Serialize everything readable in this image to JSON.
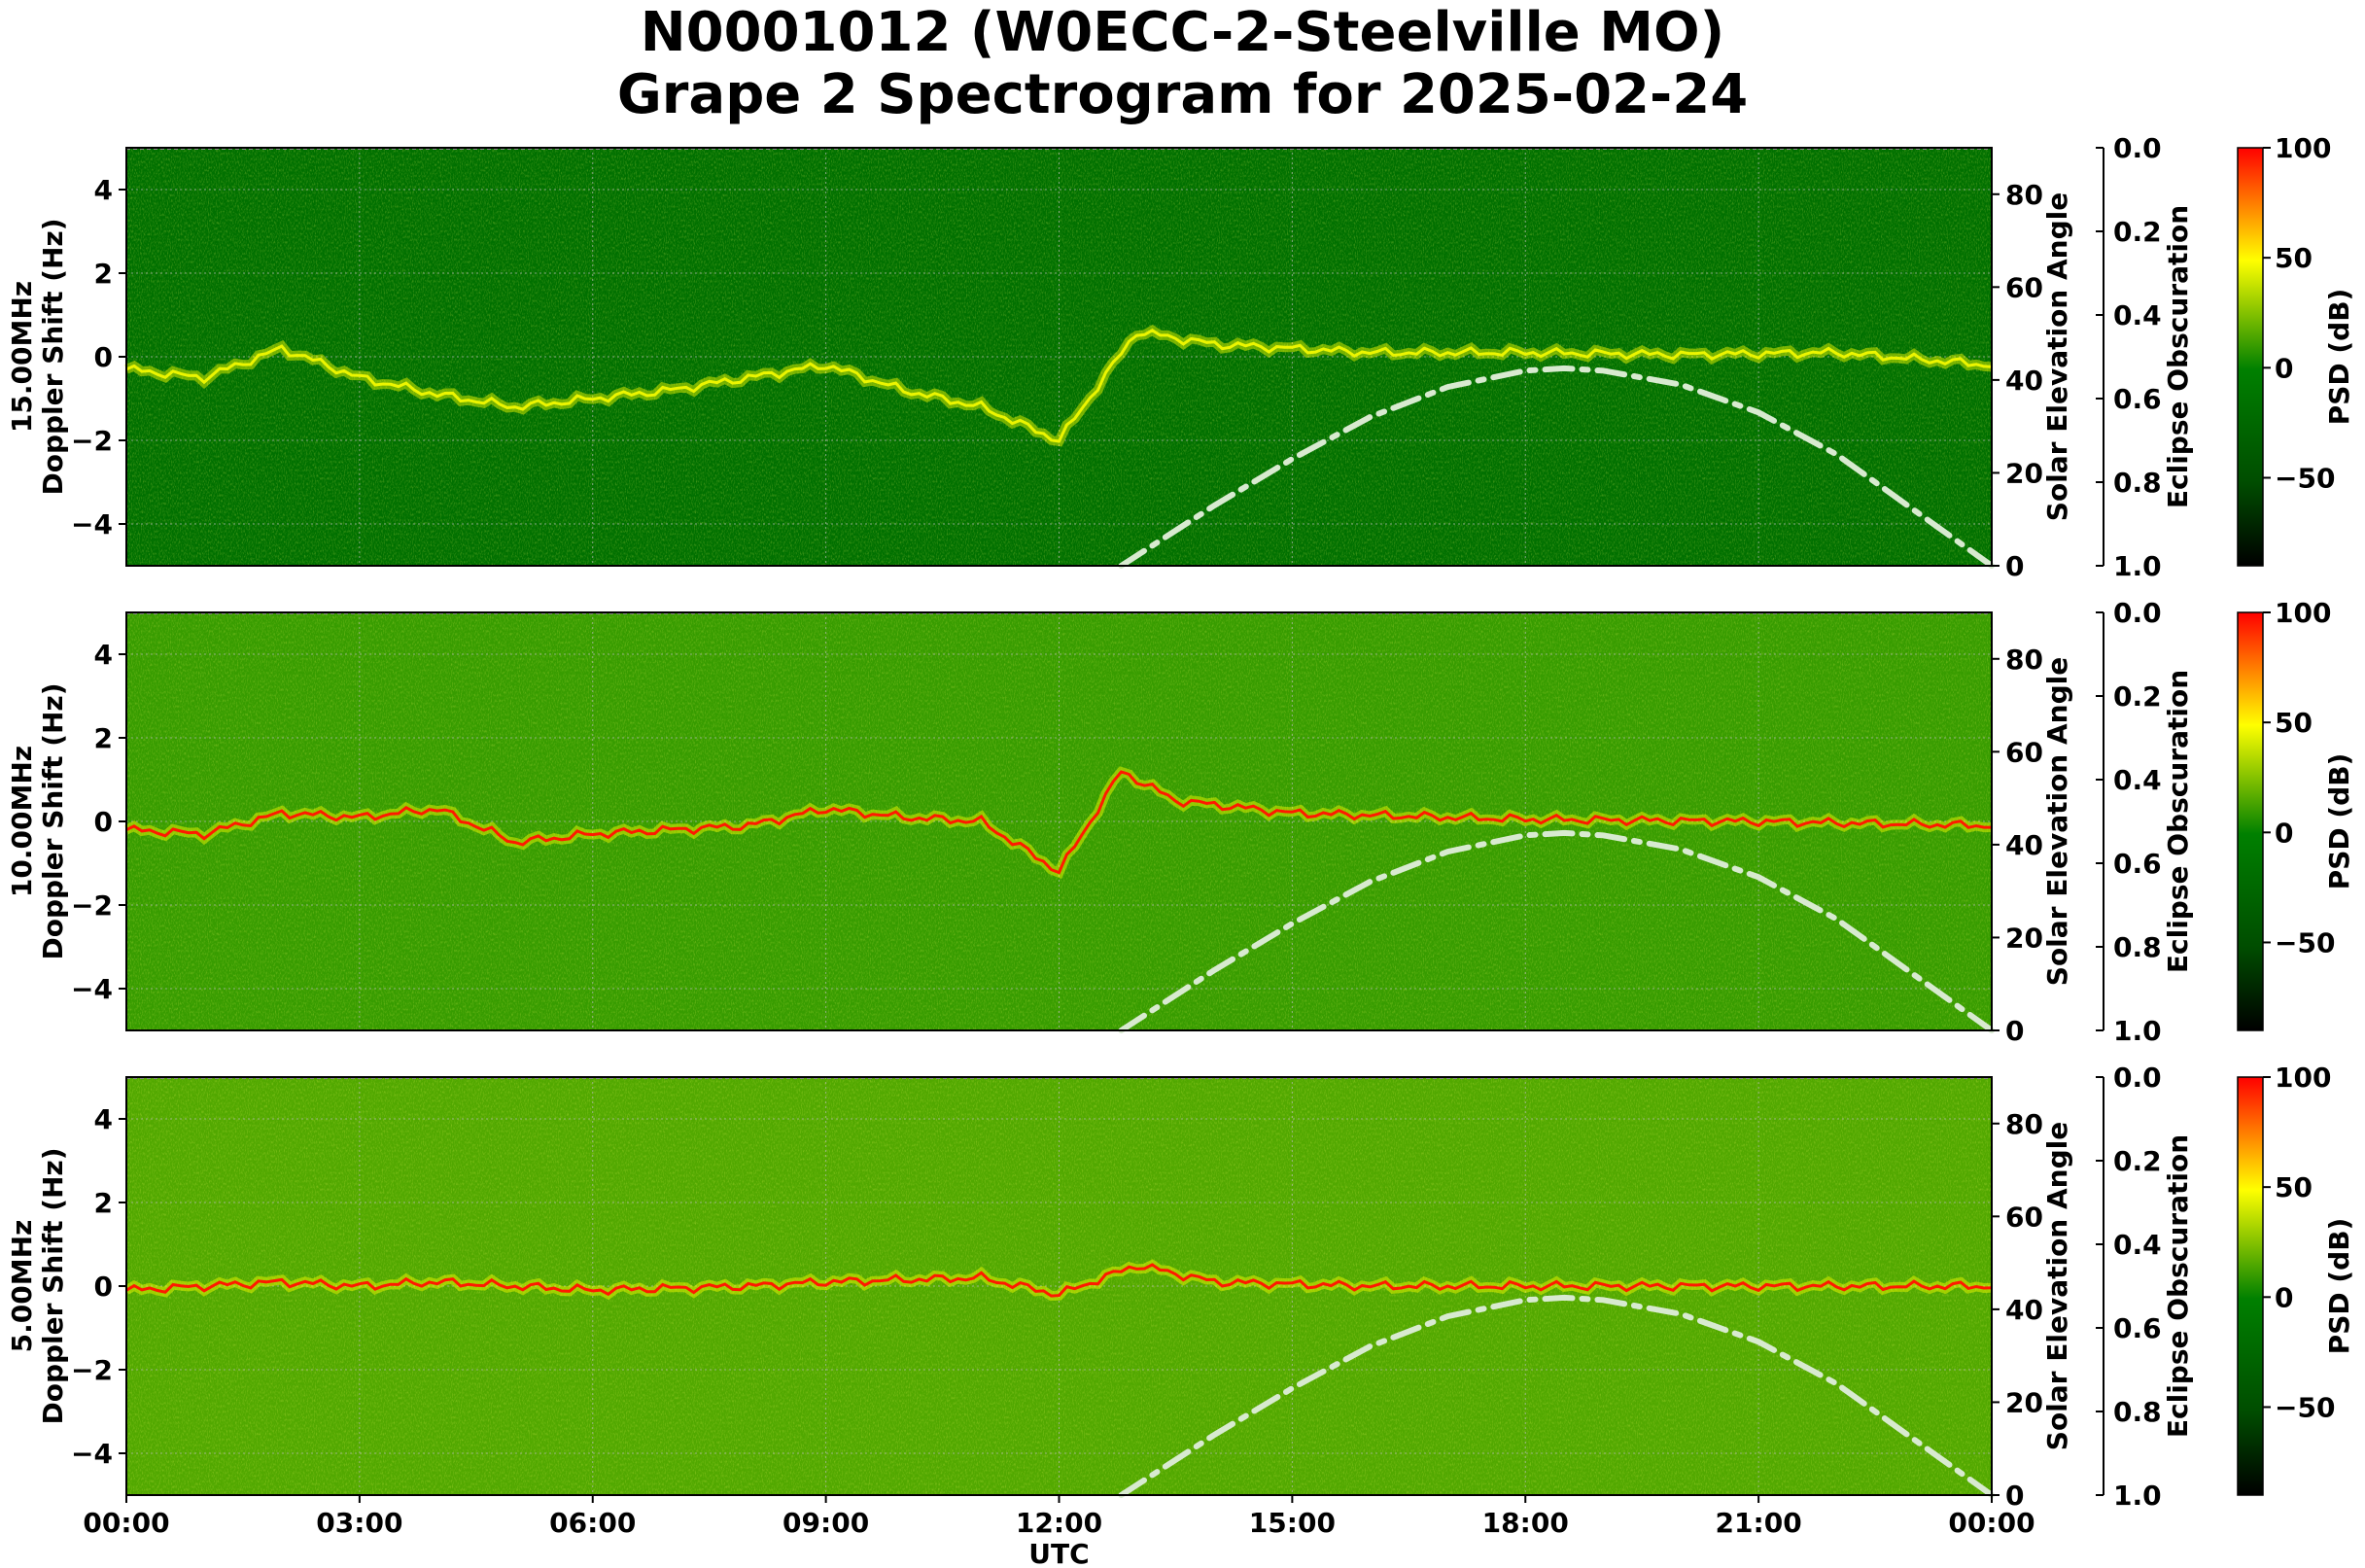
{
  "title": {
    "line1": "N0001012 (W0ECC-2-Steelville MO)",
    "line2": "Grape 2 Spectrogram for 2025-02-24"
  },
  "colors": {
    "cmap": [
      "#000000",
      "#006400",
      "#008000",
      "#ffff00",
      "#ff0000"
    ],
    "solar_curve": "#d8ead0",
    "grid": "#bbbbbb"
  },
  "chart_data": [
    {
      "type": "heatmap",
      "panel": "15.00MHz",
      "ylabel_line1": "15.00MHz",
      "ylabel_line2": "Doppler Shift (Hz)",
      "ylabel_right": "Solar Elevation Angle",
      "ylabel_eclipse": "Eclipse Obscuration",
      "colorbar_label": "PSD (dB)",
      "ylim": [
        -5,
        5
      ],
      "yticks": [
        "4",
        "2",
        "0",
        "−2",
        "−4"
      ],
      "yticks_values": [
        4,
        2,
        0,
        -2,
        -4
      ],
      "solar_ylim": [
        0,
        90
      ],
      "solar_ticks": [
        "80",
        "60",
        "40",
        "20",
        "0"
      ],
      "solar_ticks_values": [
        80,
        60,
        40,
        20,
        0
      ],
      "eclipse_ylim": [
        0.0,
        1.0
      ],
      "eclipse_ticks": [
        "0.0",
        "0.2",
        "0.4",
        "0.6",
        "0.8",
        "1.0"
      ],
      "colorbar_range": [
        -90,
        100
      ],
      "colorbar_ticks": [
        "100",
        "50",
        "0",
        "−50"
      ],
      "colorbar_ticks_values": [
        100,
        50,
        0,
        -50
      ],
      "background_psd": -30,
      "doppler_trace": [
        [
          0,
          -0.3
        ],
        [
          1,
          -0.5
        ],
        [
          2,
          0.2
        ],
        [
          3,
          -0.5
        ],
        [
          4,
          -0.9
        ],
        [
          5,
          -1.2
        ],
        [
          6,
          -1.0
        ],
        [
          7,
          -0.8
        ],
        [
          9,
          -0.2
        ],
        [
          10,
          -0.8
        ],
        [
          11,
          -1.2
        ],
        [
          12,
          -2.0
        ],
        [
          13,
          0.6
        ],
        [
          14,
          0.3
        ],
        [
          16,
          0.1
        ],
        [
          18,
          0.1
        ],
        [
          20,
          0.05
        ],
        [
          22,
          0.1
        ],
        [
          24,
          -0.2
        ]
      ],
      "trace_psd": 45,
      "solar_elevation": [
        [
          12.8,
          0
        ],
        [
          14,
          13
        ],
        [
          15,
          23
        ],
        [
          16,
          32
        ],
        [
          17,
          38.5
        ],
        [
          18,
          42
        ],
        [
          18.5,
          42.5
        ],
        [
          19,
          42
        ],
        [
          20,
          39
        ],
        [
          21,
          33
        ],
        [
          22,
          24
        ],
        [
          23,
          12
        ],
        [
          24,
          0
        ]
      ]
    },
    {
      "type": "heatmap",
      "panel": "10.00MHz",
      "ylabel_line1": "10.00MHz",
      "ylabel_line2": "Doppler Shift (Hz)",
      "ylabel_right": "Solar Elevation Angle",
      "ylabel_eclipse": "Eclipse Obscuration",
      "colorbar_label": "PSD (dB)",
      "ylim": [
        -5,
        5
      ],
      "yticks": [
        "4",
        "2",
        "0",
        "−2",
        "−4"
      ],
      "yticks_values": [
        4,
        2,
        0,
        -2,
        -4
      ],
      "solar_ylim": [
        0,
        90
      ],
      "solar_ticks": [
        "80",
        "60",
        "40",
        "20",
        "0"
      ],
      "solar_ticks_values": [
        80,
        60,
        40,
        20,
        0
      ],
      "eclipse_ylim": [
        0.0,
        1.0
      ],
      "eclipse_ticks": [
        "0.0",
        "0.2",
        "0.4",
        "0.6",
        "0.8",
        "1.0"
      ],
      "colorbar_range": [
        -90,
        100
      ],
      "colorbar_ticks": [
        "100",
        "50",
        "0",
        "−50"
      ],
      "colorbar_ticks_values": [
        100,
        50,
        0,
        -50
      ],
      "background_psd": 10,
      "doppler_trace": [
        [
          0,
          -0.2
        ],
        [
          1,
          -0.3
        ],
        [
          2,
          0.2
        ],
        [
          3,
          0.1
        ],
        [
          4,
          0.3
        ],
        [
          5,
          -0.5
        ],
        [
          6,
          -0.3
        ],
        [
          8,
          -0.1
        ],
        [
          9,
          0.3
        ],
        [
          10,
          0.1
        ],
        [
          11,
          0.0
        ],
        [
          12,
          -1.2
        ],
        [
          12.8,
          1.2
        ],
        [
          13.5,
          0.5
        ],
        [
          15,
          0.2
        ],
        [
          18,
          0.05
        ],
        [
          21,
          0.0
        ],
        [
          24,
          -0.1
        ]
      ],
      "trace_psd": 95,
      "solar_elevation": [
        [
          12.8,
          0
        ],
        [
          14,
          13
        ],
        [
          15,
          23
        ],
        [
          16,
          32
        ],
        [
          17,
          38.5
        ],
        [
          18,
          42
        ],
        [
          18.5,
          42.5
        ],
        [
          19,
          42
        ],
        [
          20,
          39
        ],
        [
          21,
          33
        ],
        [
          22,
          24
        ],
        [
          23,
          12
        ],
        [
          24,
          0
        ]
      ]
    },
    {
      "type": "heatmap",
      "panel": "5.00MHz",
      "ylabel_line1": "5.00MHz",
      "ylabel_line2": "Doppler Shift (Hz)",
      "ylabel_right": "Solar Elevation Angle",
      "ylabel_eclipse": "Eclipse Obscuration",
      "colorbar_label": "PSD (dB)",
      "ylim": [
        -5,
        5
      ],
      "yticks": [
        "4",
        "2",
        "0",
        "−2",
        "−4"
      ],
      "yticks_values": [
        4,
        2,
        0,
        -2,
        -4
      ],
      "solar_ylim": [
        0,
        90
      ],
      "solar_ticks": [
        "80",
        "60",
        "40",
        "20",
        "0"
      ],
      "solar_ticks_values": [
        80,
        60,
        40,
        20,
        0
      ],
      "eclipse_ylim": [
        0.0,
        1.0
      ],
      "eclipse_ticks": [
        "0.0",
        "0.2",
        "0.4",
        "0.6",
        "0.8",
        "1.0"
      ],
      "colorbar_range": [
        -90,
        100
      ],
      "colorbar_ticks": [
        "100",
        "50",
        "0",
        "−50"
      ],
      "colorbar_ticks_values": [
        100,
        50,
        0,
        -50
      ],
      "background_psd": 15,
      "doppler_trace": [
        [
          0,
          -0.1
        ],
        [
          2,
          0.1
        ],
        [
          3,
          0.0
        ],
        [
          4,
          0.1
        ],
        [
          6,
          -0.1
        ],
        [
          8,
          0.0
        ],
        [
          9,
          0.1
        ],
        [
          11,
          0.2
        ],
        [
          12,
          -0.2
        ],
        [
          13,
          0.5
        ],
        [
          14,
          0.1
        ],
        [
          16,
          0.0
        ],
        [
          20,
          0.0
        ],
        [
          24,
          0.0
        ]
      ],
      "trace_psd": 95,
      "solar_elevation": [
        [
          12.8,
          0
        ],
        [
          14,
          13
        ],
        [
          15,
          23
        ],
        [
          16,
          32
        ],
        [
          17,
          38.5
        ],
        [
          18,
          42
        ],
        [
          18.5,
          42.5
        ],
        [
          19,
          42
        ],
        [
          20,
          39
        ],
        [
          21,
          33
        ],
        [
          22,
          24
        ],
        [
          23,
          12
        ],
        [
          24,
          0
        ]
      ]
    }
  ],
  "x_axis": {
    "label": "UTC",
    "xlim": [
      0,
      24
    ],
    "ticks": [
      "00:00",
      "03:00",
      "06:00",
      "09:00",
      "12:00",
      "15:00",
      "18:00",
      "21:00",
      "00:00"
    ],
    "ticks_values": [
      0,
      3,
      6,
      9,
      12,
      15,
      18,
      21,
      24
    ]
  }
}
